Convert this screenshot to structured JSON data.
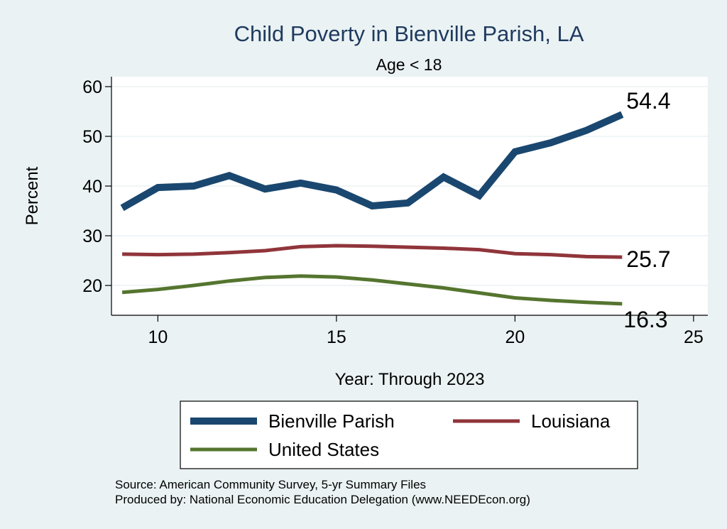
{
  "chart_data": {
    "type": "line",
    "title": "Child Poverty in Bienville Parish, LA",
    "subtitle": "Age < 18",
    "xlabel": "Year: Through 2023",
    "ylabel": "Percent",
    "xlim": [
      8.7,
      25.4
    ],
    "ylim": [
      14,
      62
    ],
    "xticks": [
      10,
      15,
      20,
      25
    ],
    "yticks": [
      20,
      30,
      40,
      50,
      60
    ],
    "x": [
      9,
      10,
      11,
      12,
      13,
      14,
      15,
      16,
      17,
      18,
      19,
      20,
      21,
      22,
      23
    ],
    "series": [
      {
        "name": "Bienville Parish",
        "color": "#1a476f",
        "values": [
          35.6,
          39.7,
          40.0,
          42.1,
          39.4,
          40.6,
          39.2,
          36.0,
          36.6,
          41.8,
          38.1,
          46.9,
          48.7,
          51.2,
          54.4
        ],
        "end_label": "54.4"
      },
      {
        "name": "Louisiana",
        "color": "#90353b",
        "values": [
          26.3,
          26.2,
          26.3,
          26.6,
          27.0,
          27.8,
          28.0,
          27.9,
          27.7,
          27.5,
          27.2,
          26.4,
          26.2,
          25.8,
          25.7
        ],
        "end_label": "25.7"
      },
      {
        "name": "United States",
        "color": "#55752f",
        "values": [
          18.6,
          19.2,
          20.0,
          20.9,
          21.6,
          21.9,
          21.7,
          21.1,
          20.3,
          19.5,
          18.5,
          17.5,
          17.0,
          16.6,
          16.3
        ],
        "end_label": "16.3"
      }
    ],
    "legend": {
      "position": "bottom",
      "entries": [
        "Bienville Parish",
        "Louisiana",
        "United States"
      ]
    },
    "notes": [
      "Source: American Community Survey, 5-yr Summary Files",
      "Produced by: National Economic Education Delegation (www.NEEDEcon.org)"
    ]
  }
}
